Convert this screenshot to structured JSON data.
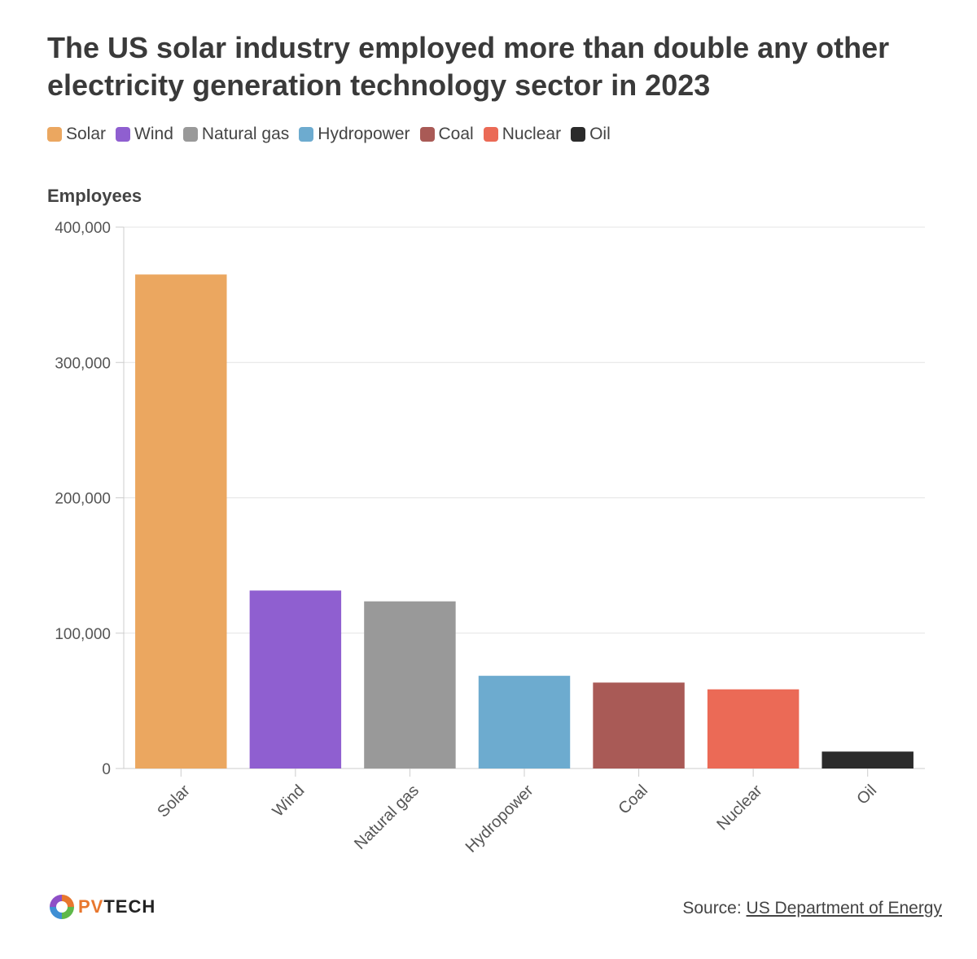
{
  "title_lines": [
    "The US solar industry employed more than double any other",
    "electricity generation technology sector in 2023"
  ],
  "legend": [
    {
      "label": "Solar",
      "color": "#eba760"
    },
    {
      "label": "Wind",
      "color": "#8f5fd0"
    },
    {
      "label": "Natural gas",
      "color": "#999999"
    },
    {
      "label": "Hydropower",
      "color": "#6dabcf"
    },
    {
      "label": "Coal",
      "color": "#a95a56"
    },
    {
      "label": "Nuclear",
      "color": "#eb6a56"
    },
    {
      "label": "Oil",
      "color": "#2b2b2b"
    }
  ],
  "chart_data": {
    "type": "bar",
    "title": "The US solar industry employed more than double any other electricity generation technology sector in 2023",
    "xlabel": "",
    "ylabel": "Employees",
    "categories": [
      "Solar",
      "Wind",
      "Natural gas",
      "Hydropower",
      "Coal",
      "Nuclear",
      "Oil"
    ],
    "values": [
      365000,
      131500,
      123500,
      68500,
      63500,
      58500,
      12500
    ],
    "colors": [
      "#eba760",
      "#8f5fd0",
      "#999999",
      "#6dabcf",
      "#a95a56",
      "#eb6a56",
      "#2b2b2b"
    ],
    "ylim": [
      0,
      400000
    ],
    "yticks": [
      0,
      100000,
      200000,
      300000,
      400000
    ],
    "ytick_labels": [
      "0",
      "100,000",
      "200,000",
      "300,000",
      "400,000"
    ],
    "grid": true
  },
  "logo": {
    "pv": "PV",
    "tech": "TECH"
  },
  "source": {
    "prefix": "Source: ",
    "link": "US Department of Energy"
  }
}
